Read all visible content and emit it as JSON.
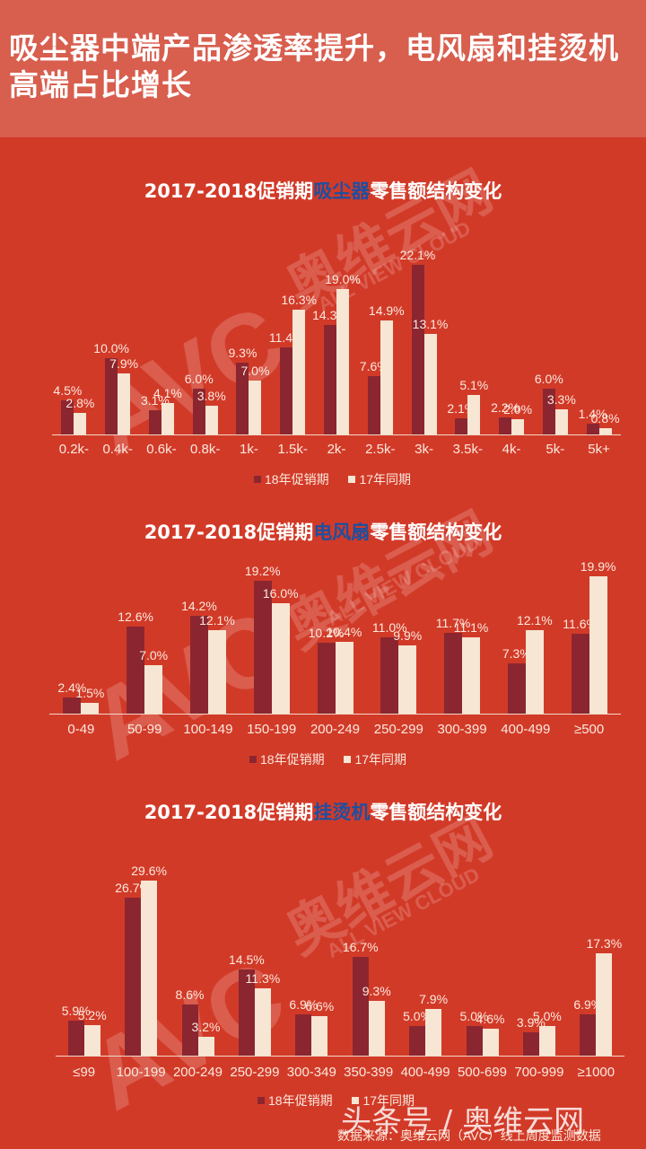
{
  "header": {
    "title": "吸尘器中端产品渗透率提升，电风扇和挂烫机高端占比增长"
  },
  "watermark": {
    "logo": "AVC",
    "cn": "奥维云网",
    "en": "ALL VIEW CLOUD"
  },
  "legend": {
    "series_18": "18年促销期",
    "series_17": "17年同期"
  },
  "footer": {
    "brand": "头条号 / 奥维云网",
    "source": "数据来源：奥维云网（AVC）线上周度监测数据"
  },
  "colors": {
    "background": "#d23a28",
    "header_band": "#d85e4e",
    "series_18": "#8b2630",
    "series_17": "#f6e6d3",
    "title_highlight": "#1e4fa0"
  },
  "chart_data": [
    {
      "type": "bar",
      "title_prefix": "2017-2018促销期",
      "title_highlight": "吸尘器",
      "title_suffix": "零售额结构变化",
      "title": "2017-2018促销期吸尘器零售额结构变化",
      "xlabel": "",
      "ylabel": "",
      "categories": [
        "0.2k-",
        "0.4k-",
        "0.6k-",
        "0.8k-",
        "1k-",
        "1.5k-",
        "2k-",
        "2.5k-",
        "3k-",
        "3.5k-",
        "4k-",
        "5k-",
        "5k+"
      ],
      "series": [
        {
          "name": "18年促销期",
          "values": [
            4.5,
            10.0,
            3.1,
            6.0,
            9.3,
            11.4,
            14.3,
            7.6,
            22.1,
            2.1,
            2.2,
            6.0,
            1.4
          ]
        },
        {
          "name": "17年同期",
          "values": [
            2.8,
            7.9,
            4.1,
            3.8,
            7.0,
            16.3,
            19.0,
            14.9,
            13.1,
            5.1,
            2.0,
            3.3,
            0.8
          ]
        }
      ],
      "value_format": "%",
      "grid": false,
      "legend_position": "bottom"
    },
    {
      "type": "bar",
      "title_prefix": "2017-2018促销期",
      "title_highlight": "电风扇",
      "title_suffix": "零售额结构变化",
      "title": "2017-2018促销期电风扇零售额结构变化",
      "xlabel": "",
      "ylabel": "",
      "categories": [
        "0-49",
        "50-99",
        "100-149",
        "150-199",
        "200-249",
        "250-299",
        "300-399",
        "400-499",
        "≥500"
      ],
      "series": [
        {
          "name": "18年促销期",
          "values": [
            2.4,
            12.6,
            14.2,
            19.2,
            10.2,
            11.0,
            11.7,
            7.3,
            11.6
          ]
        },
        {
          "name": "17年同期",
          "values": [
            1.5,
            7.0,
            12.1,
            16.0,
            10.4,
            9.9,
            11.1,
            12.1,
            19.9
          ]
        }
      ],
      "value_format": "%",
      "grid": false,
      "legend_position": "bottom"
    },
    {
      "type": "bar",
      "title_prefix": "2017-2018促销期",
      "title_highlight": "挂烫机",
      "title_suffix": "零售额结构变化",
      "title": "2017-2018促销期挂烫机零售额结构变化",
      "xlabel": "",
      "ylabel": "",
      "categories": [
        "≤99",
        "100-199",
        "200-249",
        "250-299",
        "300-349",
        "350-399",
        "400-499",
        "500-699",
        "700-999",
        "≥1000"
      ],
      "series": [
        {
          "name": "18年促销期",
          "values": [
            5.9,
            26.7,
            8.6,
            14.5,
            6.9,
            16.7,
            5.0,
            5.0,
            3.9,
            6.9
          ]
        },
        {
          "name": "17年同期",
          "values": [
            5.2,
            29.6,
            3.2,
            11.3,
            6.6,
            9.3,
            7.9,
            4.6,
            5.0,
            17.3
          ]
        }
      ],
      "value_format": "%",
      "grid": false,
      "legend_position": "bottom"
    }
  ]
}
